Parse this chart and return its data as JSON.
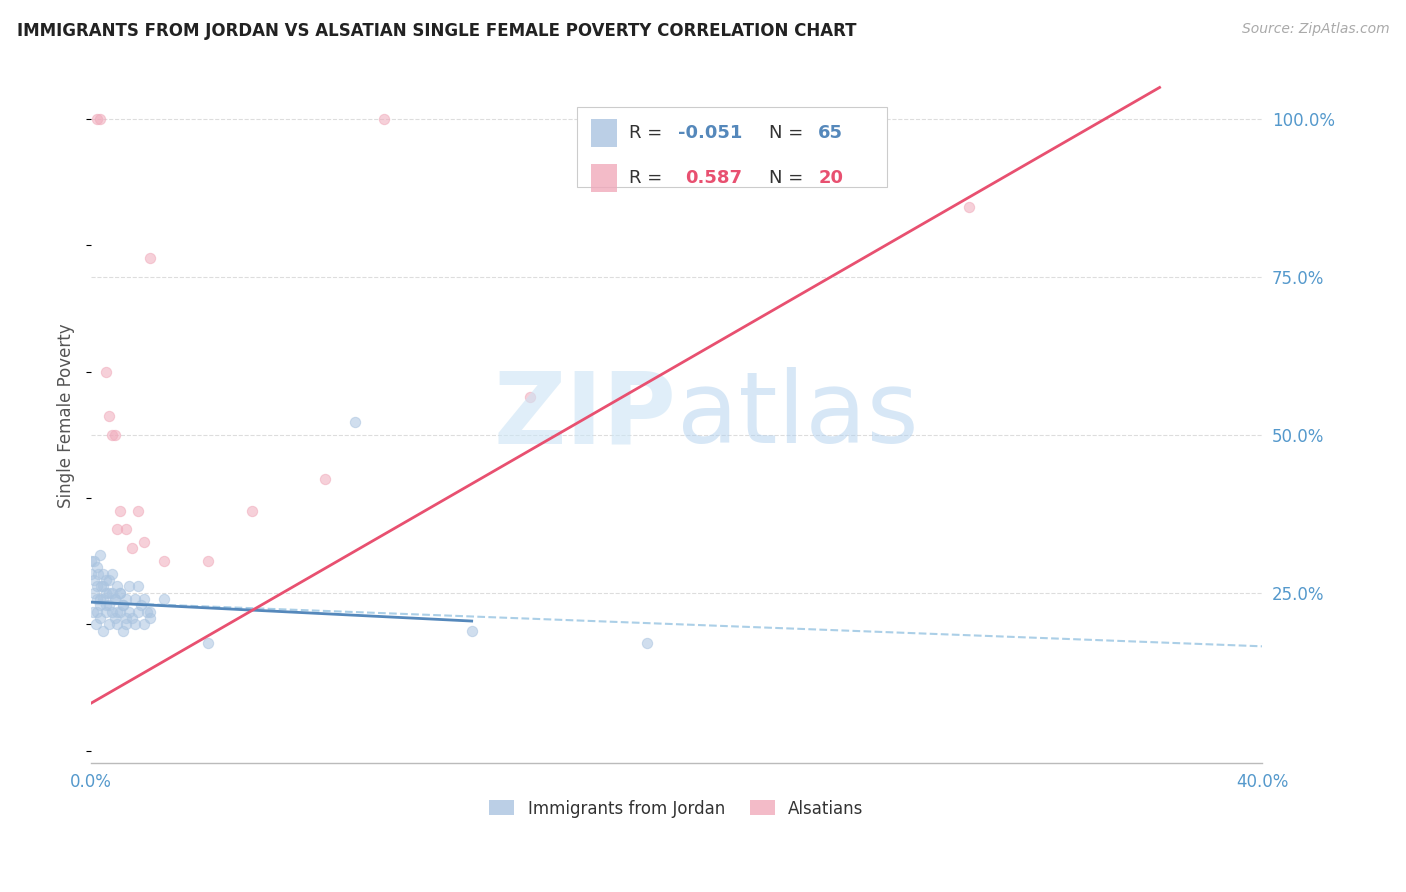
{
  "title": "IMMIGRANTS FROM JORDAN VS ALSATIAN SINGLE FEMALE POVERTY CORRELATION CHART",
  "source": "Source: ZipAtlas.com",
  "ylabel": "Single Female Poverty",
  "xlim": [
    0.0,
    0.4
  ],
  "ylim": [
    -0.02,
    1.08
  ],
  "blue_color": "#aac4e0",
  "pink_color": "#f0aabb",
  "blue_line_color": "#5588bb",
  "blue_dash_color": "#88bbdd",
  "pink_line_color": "#e85070",
  "grid_color": "#dddddd",
  "background_color": "#ffffff",
  "title_color": "#222222",
  "source_color": "#aaaaaa",
  "axis_label_color": "#5599cc",
  "ylabel_color": "#555555",
  "legend_r1_label": "R = ",
  "legend_r1_val": "-0.051",
  "legend_n1_label": "N = ",
  "legend_n1_val": "65",
  "legend_r2_label": "R =  ",
  "legend_r2_val": "0.587",
  "legend_n2_label": "N = ",
  "legend_n2_val": "20",
  "xtick_positions": [
    0.0,
    0.1,
    0.2,
    0.3,
    0.4
  ],
  "xtick_labels": [
    "0.0%",
    "",
    "",
    "",
    "40.0%"
  ],
  "ytick_positions": [
    0.25,
    0.5,
    0.75,
    1.0
  ],
  "ytick_labels": [
    "25.0%",
    "50.0%",
    "75.0%",
    "100.0%"
  ],
  "blue_solid_trend_x": [
    0.0,
    0.13
  ],
  "blue_solid_trend_y": [
    0.235,
    0.205
  ],
  "blue_dash_trend_x": [
    0.0,
    0.4
  ],
  "blue_dash_trend_y": [
    0.235,
    0.165
  ],
  "pink_trend_x": [
    0.0,
    0.365
  ],
  "pink_trend_y": [
    0.075,
    1.05
  ],
  "jordan_x": [
    0.0005,
    0.001,
    0.0015,
    0.002,
    0.002,
    0.0025,
    0.003,
    0.003,
    0.0035,
    0.004,
    0.004,
    0.005,
    0.005,
    0.006,
    0.006,
    0.006,
    0.007,
    0.007,
    0.008,
    0.008,
    0.009,
    0.009,
    0.01,
    0.01,
    0.011,
    0.011,
    0.012,
    0.012,
    0.013,
    0.013,
    0.014,
    0.015,
    0.015,
    0.016,
    0.016,
    0.017,
    0.018,
    0.018,
    0.019,
    0.02,
    0.0,
    0.0,
    0.001,
    0.001,
    0.002,
    0.002,
    0.003,
    0.003,
    0.004,
    0.004,
    0.005,
    0.005,
    0.006,
    0.007,
    0.008,
    0.009,
    0.01,
    0.011,
    0.012,
    0.02,
    0.025,
    0.04,
    0.09,
    0.13,
    0.19
  ],
  "jordan_y": [
    0.22,
    0.25,
    0.2,
    0.24,
    0.22,
    0.28,
    0.21,
    0.23,
    0.26,
    0.19,
    0.24,
    0.22,
    0.27,
    0.2,
    0.23,
    0.25,
    0.22,
    0.28,
    0.21,
    0.24,
    0.2,
    0.26,
    0.22,
    0.25,
    0.19,
    0.23,
    0.2,
    0.24,
    0.22,
    0.26,
    0.21,
    0.2,
    0.24,
    0.22,
    0.26,
    0.23,
    0.2,
    0.24,
    0.22,
    0.21,
    0.3,
    0.28,
    0.3,
    0.27,
    0.29,
    0.26,
    0.31,
    0.24,
    0.28,
    0.26,
    0.25,
    0.23,
    0.27,
    0.25,
    0.24,
    0.22,
    0.25,
    0.23,
    0.21,
    0.22,
    0.24,
    0.17,
    0.52,
    0.19,
    0.17
  ],
  "alsatian_x": [
    0.002,
    0.003,
    0.005,
    0.006,
    0.007,
    0.008,
    0.009,
    0.01,
    0.012,
    0.014,
    0.016,
    0.018,
    0.02,
    0.025,
    0.04,
    0.055,
    0.08,
    0.1,
    0.15,
    0.3
  ],
  "alsatian_y": [
    1.0,
    1.0,
    0.6,
    0.53,
    0.5,
    0.5,
    0.35,
    0.38,
    0.35,
    0.32,
    0.38,
    0.33,
    0.78,
    0.3,
    0.3,
    0.38,
    0.43,
    1.0,
    0.56,
    0.86
  ],
  "watermark_zip_color": "#cce4f5",
  "watermark_atlas_color": "#b0d0ee",
  "legend_border_color": "#cccccc",
  "bottom_legend_jordan": "Immigrants from Jordan",
  "bottom_legend_alsatian": "Alsatians"
}
